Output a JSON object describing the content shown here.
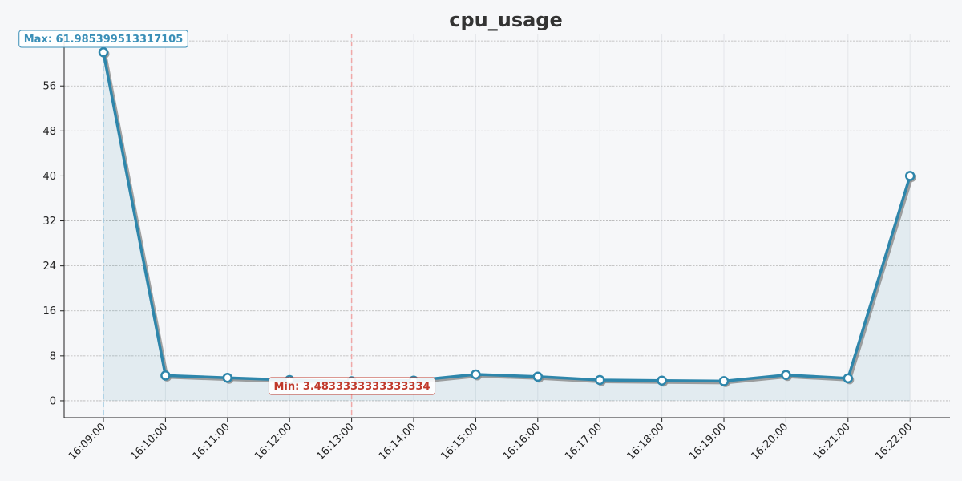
{
  "chart_data": {
    "type": "line",
    "title": "cpu_usage",
    "xlabel": "",
    "ylabel": "",
    "categories": [
      "16:09:00",
      "16:10:00",
      "16:11:00",
      "16:12:00",
      "16:13:00",
      "16:14:00",
      "16:15:00",
      "16:16:00",
      "16:17:00",
      "16:18:00",
      "16:19:00",
      "16:20:00",
      "16:21:00",
      "16:22:00"
    ],
    "series": [
      {
        "values": [
          61.985399513317105,
          4.5,
          4.1,
          3.7,
          3.4833333333333334,
          3.6,
          4.7,
          4.3,
          3.7,
          3.6,
          3.5,
          4.6,
          4.0,
          40.0
        ]
      }
    ],
    "ylim": [
      -3,
      65.3
    ],
    "yticks": [
      0,
      8,
      16,
      24,
      32,
      40,
      48,
      56
    ],
    "grid": true,
    "annotations": {
      "max": {
        "label": "Max: 61.985399513317105",
        "category": "16:09:00",
        "value": 61.985399513317105
      },
      "min": {
        "label": "Min: 3.4833333333333334",
        "category": "16:13:00",
        "value": 3.4833333333333334
      }
    }
  },
  "colors": {
    "line": "#2e86ab",
    "shadow": "#8a8a8a",
    "fill": "#2e86ab",
    "max_accent": "#3a8fb7",
    "max_line": "#9ecae1",
    "min_accent": "#c0392b",
    "min_line": "#f0a8a8",
    "background": "#f6f7f9"
  }
}
